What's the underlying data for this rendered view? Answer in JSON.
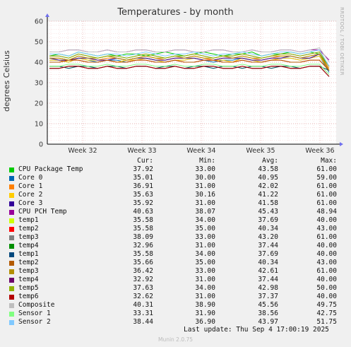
{
  "side_label": "RRDTOOL / TOBI OETIKER",
  "footer": {
    "last_update": "Last update: Thu Sep  4 17:00:19 2025",
    "version": "Munin 2.0.75"
  },
  "legend_header": {
    "cur": "Cur:",
    "min": "Min:",
    "avg": "Avg:",
    "max": "Max:"
  },
  "legend": [
    {
      "name": "CPU Package Temp",
      "color": "#00cc00",
      "cur": "37.92",
      "min": "33.00",
      "avg": "43.58",
      "max": "61.00"
    },
    {
      "name": "Core 0",
      "color": "#0066b3",
      "cur": "35.01",
      "min": "30.00",
      "avg": "40.95",
      "max": "59.00"
    },
    {
      "name": "Core 1",
      "color": "#ff8000",
      "cur": "36.91",
      "min": "31.00",
      "avg": "42.02",
      "max": "61.00"
    },
    {
      "name": "Core 2",
      "color": "#ffcc00",
      "cur": "35.63",
      "min": "30.16",
      "avg": "41.22",
      "max": "61.00"
    },
    {
      "name": "Core 3",
      "color": "#330099",
      "cur": "35.92",
      "min": "31.00",
      "avg": "41.58",
      "max": "61.00"
    },
    {
      "name": "CPU PCH Temp",
      "color": "#990099",
      "cur": "40.63",
      "min": "38.07",
      "avg": "45.43",
      "max": "48.94"
    },
    {
      "name": "temp1",
      "color": "#ccff00",
      "cur": "35.58",
      "min": "34.00",
      "avg": "37.69",
      "max": "40.00"
    },
    {
      "name": "temp2",
      "color": "#ff0000",
      "cur": "35.58",
      "min": "35.00",
      "avg": "40.34",
      "max": "43.00"
    },
    {
      "name": "temp3",
      "color": "#808080",
      "cur": "38.09",
      "min": "33.00",
      "avg": "43.20",
      "max": "61.00"
    },
    {
      "name": "temp4",
      "color": "#008f00",
      "cur": "32.96",
      "min": "31.00",
      "avg": "37.44",
      "max": "40.00"
    },
    {
      "name": "temp1",
      "color": "#00487d",
      "cur": "35.58",
      "min": "34.00",
      "avg": "37.69",
      "max": "40.00"
    },
    {
      "name": "temp2",
      "color": "#b35a00",
      "cur": "35.66",
      "min": "35.00",
      "avg": "40.34",
      "max": "43.00"
    },
    {
      "name": "temp3",
      "color": "#b38f00",
      "cur": "36.42",
      "min": "33.00",
      "avg": "42.61",
      "max": "61.00"
    },
    {
      "name": "temp4",
      "color": "#6b006b",
      "cur": "32.92",
      "min": "31.00",
      "avg": "37.44",
      "max": "40.00"
    },
    {
      "name": "temp5",
      "color": "#8fb300",
      "cur": "37.63",
      "min": "34.00",
      "avg": "42.98",
      "max": "50.00"
    },
    {
      "name": "temp6",
      "color": "#b30000",
      "cur": "32.62",
      "min": "31.00",
      "avg": "37.37",
      "max": "40.00"
    },
    {
      "name": "Composite",
      "color": "#bebebe",
      "cur": "40.31",
      "min": "38.90",
      "avg": "45.56",
      "max": "49.75"
    },
    {
      "name": "Sensor 1",
      "color": "#80ff80",
      "cur": "33.31",
      "min": "31.90",
      "avg": "38.56",
      "max": "42.75"
    },
    {
      "name": "Sensor 2",
      "color": "#80c9ff",
      "cur": "38.44",
      "min": "36.90",
      "avg": "43.97",
      "max": "51.75"
    }
  ],
  "chart_data": {
    "type": "line",
    "title": "Temperatures - by month",
    "ylabel": "degrees Celsius",
    "xlabel": "",
    "ylim": [
      0,
      60
    ],
    "yticks": [
      0,
      10,
      20,
      30,
      40,
      50,
      60
    ],
    "xticks": [
      "Week 32",
      "Week 33",
      "Week 34",
      "Week 35",
      "Week 36"
    ],
    "grid": true,
    "series": [
      {
        "name": "CPU Package Temp",
        "color": "#00cc00",
        "values": [
          43,
          44,
          43,
          45,
          44,
          43,
          44,
          43,
          44,
          44,
          43,
          44,
          45,
          44,
          43,
          44,
          45,
          44,
          43,
          44,
          44,
          45,
          43,
          44,
          44,
          45,
          44,
          45,
          44,
          38
        ]
      },
      {
        "name": "Core 0",
        "color": "#0066b3",
        "values": [
          41,
          41,
          40,
          42,
          41,
          40,
          41,
          41,
          40,
          41,
          42,
          41,
          40,
          41,
          41,
          42,
          41,
          40,
          41,
          41,
          42,
          41,
          40,
          41,
          42,
          42,
          41,
          42,
          43,
          35
        ]
      },
      {
        "name": "Core 1",
        "color": "#ff8000",
        "values": [
          42,
          42,
          41,
          43,
          42,
          41,
          42,
          42,
          41,
          42,
          43,
          42,
          41,
          42,
          42,
          43,
          42,
          41,
          42,
          42,
          43,
          42,
          41,
          42,
          43,
          43,
          42,
          43,
          44,
          37
        ]
      },
      {
        "name": "Core 2",
        "color": "#ffcc00",
        "values": [
          41,
          41,
          40,
          42,
          41,
          41,
          41,
          40,
          41,
          41,
          42,
          41,
          40,
          41,
          41,
          42,
          41,
          41,
          41,
          40,
          42,
          41,
          40,
          41,
          42,
          42,
          41,
          42,
          43,
          36
        ]
      },
      {
        "name": "Core 3",
        "color": "#330099",
        "values": [
          42,
          41,
          41,
          42,
          42,
          41,
          41,
          42,
          41,
          42,
          42,
          41,
          41,
          42,
          42,
          42,
          41,
          41,
          42,
          42,
          42,
          41,
          41,
          42,
          42,
          43,
          42,
          42,
          44,
          36
        ]
      },
      {
        "name": "CPU PCH Temp",
        "color": "#990099",
        "values": [
          45,
          45,
          46,
          46,
          45,
          45,
          46,
          45,
          45,
          46,
          46,
          45,
          45,
          46,
          46,
          45,
          45,
          46,
          46,
          45,
          45,
          46,
          45,
          45,
          46,
          46,
          45,
          46,
          46,
          41
        ]
      },
      {
        "name": "temp1",
        "color": "#ccff00",
        "values": [
          38,
          38,
          37,
          38,
          38,
          37,
          38,
          38,
          37,
          38,
          38,
          37,
          38,
          38,
          37,
          38,
          38,
          37,
          38,
          38,
          37,
          38,
          38,
          37,
          38,
          38,
          37,
          38,
          38,
          36
        ]
      },
      {
        "name": "temp2",
        "color": "#ff0000",
        "values": [
          40,
          40,
          41,
          41,
          40,
          40,
          41,
          40,
          40,
          41,
          41,
          40,
          40,
          41,
          40,
          40,
          41,
          41,
          40,
          40,
          41,
          40,
          40,
          41,
          41,
          40,
          40,
          41,
          41,
          36
        ]
      },
      {
        "name": "temp3",
        "color": "#808080",
        "values": [
          43,
          43,
          42,
          44,
          43,
          42,
          43,
          43,
          42,
          43,
          44,
          43,
          42,
          43,
          43,
          44,
          43,
          42,
          43,
          43,
          44,
          43,
          42,
          43,
          44,
          44,
          43,
          44,
          45,
          38
        ]
      },
      {
        "name": "temp4",
        "color": "#008f00",
        "values": [
          37,
          37,
          38,
          38,
          37,
          37,
          38,
          37,
          37,
          38,
          38,
          37,
          37,
          38,
          37,
          37,
          38,
          38,
          37,
          37,
          38,
          37,
          37,
          38,
          38,
          37,
          37,
          38,
          38,
          33
        ]
      },
      {
        "name": "temp1",
        "color": "#00487d",
        "values": [
          38,
          38,
          37,
          38,
          38,
          37,
          38,
          38,
          37,
          38,
          38,
          37,
          38,
          38,
          37,
          38,
          38,
          37,
          38,
          38,
          37,
          38,
          38,
          37,
          38,
          38,
          37,
          38,
          38,
          36
        ]
      },
      {
        "name": "temp2",
        "color": "#b35a00",
        "values": [
          40,
          40,
          41,
          41,
          40,
          40,
          41,
          40,
          40,
          41,
          41,
          40,
          40,
          41,
          40,
          40,
          41,
          41,
          40,
          40,
          41,
          40,
          40,
          41,
          41,
          40,
          40,
          41,
          41,
          36
        ]
      },
      {
        "name": "temp3",
        "color": "#b38f00",
        "values": [
          42,
          42,
          41,
          43,
          42,
          42,
          43,
          42,
          41,
          42,
          43,
          42,
          42,
          43,
          42,
          43,
          42,
          42,
          43,
          42,
          43,
          42,
          42,
          43,
          43,
          43,
          42,
          43,
          44,
          36
        ]
      },
      {
        "name": "temp4",
        "color": "#6b006b",
        "values": [
          37,
          37,
          38,
          38,
          37,
          37,
          38,
          37,
          37,
          38,
          38,
          37,
          37,
          38,
          37,
          37,
          38,
          38,
          37,
          37,
          38,
          37,
          37,
          38,
          38,
          37,
          37,
          38,
          38,
          33
        ]
      },
      {
        "name": "temp5",
        "color": "#8fb300",
        "values": [
          43,
          43,
          42,
          44,
          43,
          42,
          43,
          43,
          42,
          43,
          44,
          43,
          42,
          43,
          43,
          44,
          43,
          42,
          43,
          43,
          44,
          43,
          42,
          43,
          44,
          44,
          43,
          44,
          45,
          38
        ]
      },
      {
        "name": "temp6",
        "color": "#b30000",
        "values": [
          37,
          37,
          38,
          38,
          37,
          37,
          38,
          37,
          37,
          38,
          38,
          37,
          37,
          38,
          37,
          37,
          38,
          38,
          37,
          37,
          38,
          37,
          37,
          38,
          38,
          37,
          37,
          38,
          38,
          33
        ]
      },
      {
        "name": "Composite",
        "color": "#bebebe",
        "values": [
          45,
          45,
          46,
          46,
          45,
          45,
          46,
          45,
          45,
          46,
          46,
          45,
          45,
          46,
          46,
          45,
          45,
          46,
          46,
          45,
          45,
          46,
          45,
          45,
          46,
          46,
          45,
          46,
          47,
          40
        ]
      },
      {
        "name": "Sensor 1",
        "color": "#80ff80",
        "values": [
          38,
          38,
          39,
          39,
          38,
          38,
          39,
          38,
          38,
          39,
          39,
          38,
          38,
          39,
          38,
          38,
          39,
          39,
          38,
          38,
          39,
          38,
          38,
          39,
          39,
          38,
          38,
          39,
          39,
          34
        ]
      },
      {
        "name": "Sensor 2",
        "color": "#80c9ff",
        "values": [
          44,
          44,
          43,
          45,
          44,
          43,
          44,
          44,
          43,
          44,
          45,
          44,
          43,
          44,
          44,
          45,
          44,
          43,
          44,
          44,
          45,
          44,
          43,
          44,
          45,
          45,
          44,
          45,
          46,
          38
        ]
      }
    ]
  }
}
